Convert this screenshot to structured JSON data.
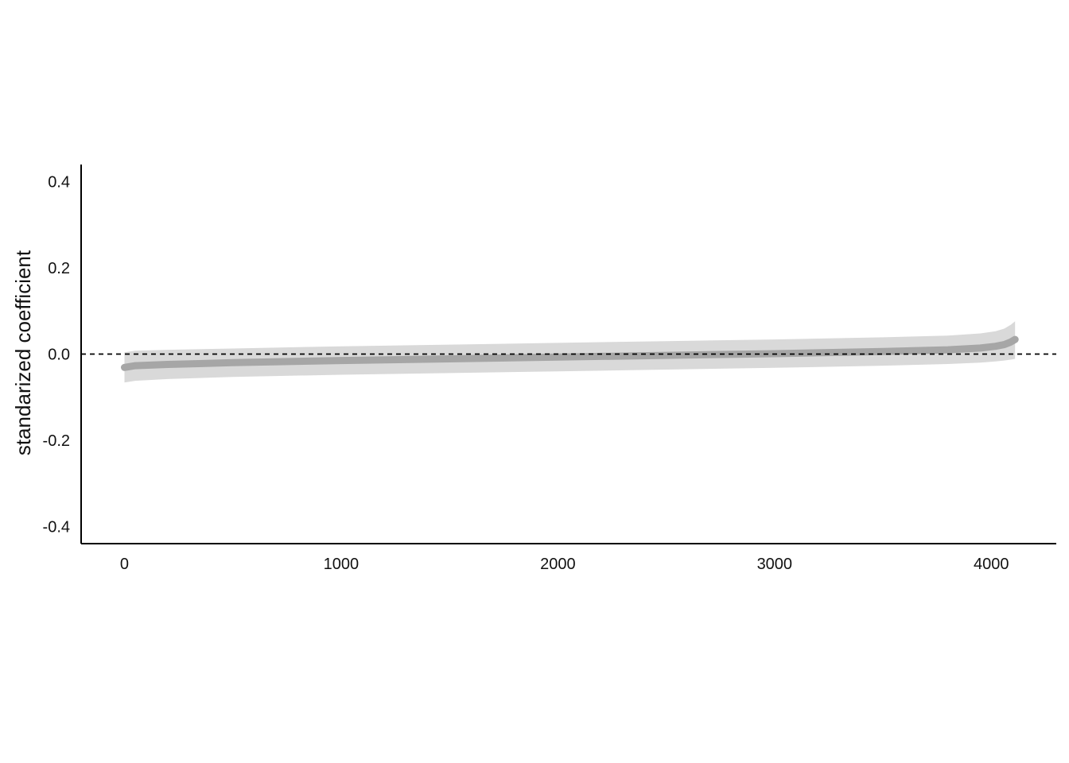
{
  "chart_data": {
    "type": "line",
    "title": "",
    "xlabel": "",
    "ylabel": "standarized coefficient",
    "xlim": [
      -200,
      4300
    ],
    "ylim": [
      -0.44,
      0.44
    ],
    "x_ticks": [
      0,
      1000,
      2000,
      3000,
      4000
    ],
    "x_tick_labels": [
      "0",
      "1000",
      "2000",
      "3000",
      "4000"
    ],
    "y_ticks": [
      0.4,
      0.2,
      0.0,
      -0.2,
      -0.4
    ],
    "y_tick_labels": [
      "0.4",
      "0.2",
      "0.0",
      "-0.2",
      "-0.4"
    ],
    "reference_line": {
      "y": 0.0,
      "style": "dashed"
    },
    "grid": false,
    "legend": "none",
    "series": [
      {
        "x": [
          0,
          50,
          200,
          500,
          1000,
          1500,
          2000,
          2500,
          3000,
          3500,
          3800,
          3950,
          4020,
          4060,
          4090,
          4110
        ],
        "values": [
          -0.031,
          -0.027,
          -0.024,
          -0.02,
          -0.015,
          -0.011,
          -0.007,
          -0.003,
          0.001,
          0.006,
          0.01,
          0.014,
          0.018,
          0.022,
          0.028,
          0.034
        ],
        "lower": [
          -0.066,
          -0.062,
          -0.058,
          -0.053,
          -0.048,
          -0.044,
          -0.04,
          -0.036,
          -0.032,
          -0.027,
          -0.023,
          -0.02,
          -0.017,
          -0.015,
          -0.013,
          -0.011
        ],
        "upper": [
          0.004,
          0.008,
          0.01,
          0.013,
          0.018,
          0.022,
          0.026,
          0.03,
          0.034,
          0.039,
          0.043,
          0.048,
          0.053,
          0.059,
          0.068,
          0.076
        ]
      }
    ],
    "colors": {
      "line": "#a6a6a6",
      "band": "#d9d9d9",
      "axis": "#000000",
      "reference": "#000000"
    }
  }
}
